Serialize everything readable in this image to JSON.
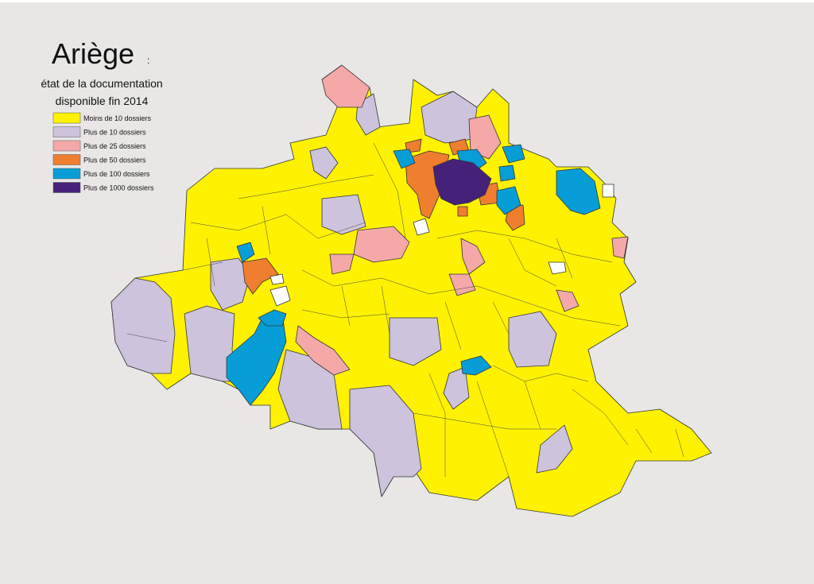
{
  "title": "Ariège",
  "title_suffix": ":",
  "subtitle": [
    "état de la documentation",
    "disponible fin 2014"
  ],
  "legend": [
    {
      "label": "Moins de 10 dossiers",
      "color": "#fff200"
    },
    {
      "label": "Plus de 10 dossiers",
      "color": "#cdc3dc"
    },
    {
      "label": "Plus de 25 dossiers",
      "color": "#f4a9a8"
    },
    {
      "label": "Plus de 50 dossiers",
      "color": "#ef7e2f"
    },
    {
      "label": "Plus de 100 dossiers",
      "color": "#079ed8"
    },
    {
      "label": "Plus de 1000 dossiers",
      "color": "#45217a"
    }
  ]
}
